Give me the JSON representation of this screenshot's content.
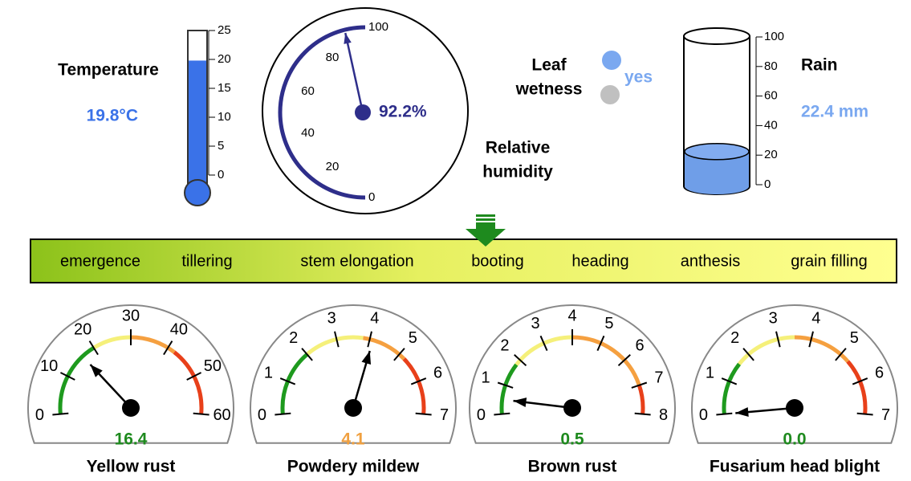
{
  "temperature": {
    "label": "Temperature",
    "value": 19.8,
    "value_label": "19.8°C",
    "range": [
      0,
      25
    ],
    "ticks": [
      0,
      5,
      10,
      15,
      20,
      25
    ]
  },
  "humidity": {
    "label": [
      "Relative",
      "humidity"
    ],
    "value": 92.2,
    "value_label": "92.2%",
    "range": [
      0,
      100
    ],
    "ticks": [
      0,
      20,
      40,
      60,
      80,
      100
    ]
  },
  "leaf_wetness": {
    "label": [
      "Leaf",
      "wetness"
    ],
    "value_label": "yes"
  },
  "rain": {
    "label": "Rain",
    "value": 22.4,
    "value_label": "22.4 mm",
    "range": [
      0,
      100
    ],
    "ticks": [
      0,
      20,
      40,
      60,
      80,
      100
    ]
  },
  "stages": [
    "emergence",
    "tillering",
    "stem elongation",
    "booting",
    "heading",
    "anthesis",
    "grain filling"
  ],
  "gauges": [
    {
      "name": "Yellow rust",
      "value": 16.4,
      "value_label": "16.4",
      "value_color": "#1e8a1e",
      "range": [
        0,
        60
      ],
      "ticks": [
        0,
        10,
        20,
        30,
        40,
        50,
        60
      ],
      "zone_limits": [
        20,
        30,
        42
      ],
      "zone_colors": [
        "#1e9a1e",
        "#f5f07a",
        "#f5a040",
        "#e8401a"
      ]
    },
    {
      "name": "Powdery mildew",
      "value": 4.1,
      "value_label": "4.1",
      "value_color": "#f0a040",
      "range": [
        0,
        7
      ],
      "ticks": [
        0,
        1,
        2,
        3,
        4,
        5,
        6,
        7
      ],
      "zone_limits": [
        2,
        3.8,
        5.2
      ],
      "zone_colors": [
        "#1e9a1e",
        "#f5f07a",
        "#f5a040",
        "#e8401a"
      ]
    },
    {
      "name": "Brown rust",
      "value": 0.5,
      "value_label": "0.5",
      "value_color": "#1e8a1e",
      "range": [
        0,
        8
      ],
      "ticks": [
        0,
        1,
        2,
        3,
        4,
        5,
        6,
        7,
        8
      ],
      "zone_limits": [
        1.8,
        4,
        7
      ],
      "zone_colors": [
        "#1e9a1e",
        "#f5f07a",
        "#f5a040",
        "#e8401a"
      ]
    },
    {
      "name": "Fusarium head blight",
      "value": 0,
      "value_label": "0.0",
      "value_color": "#1e8a1e",
      "range": [
        0,
        7
      ],
      "ticks": [
        0,
        1,
        2,
        3,
        4,
        5,
        6,
        7
      ],
      "zone_limits": [
        1.6,
        3.5,
        5.3
      ],
      "zone_colors": [
        "#1e9a1e",
        "#f5f07a",
        "#f5a040",
        "#e8401a"
      ]
    }
  ]
}
